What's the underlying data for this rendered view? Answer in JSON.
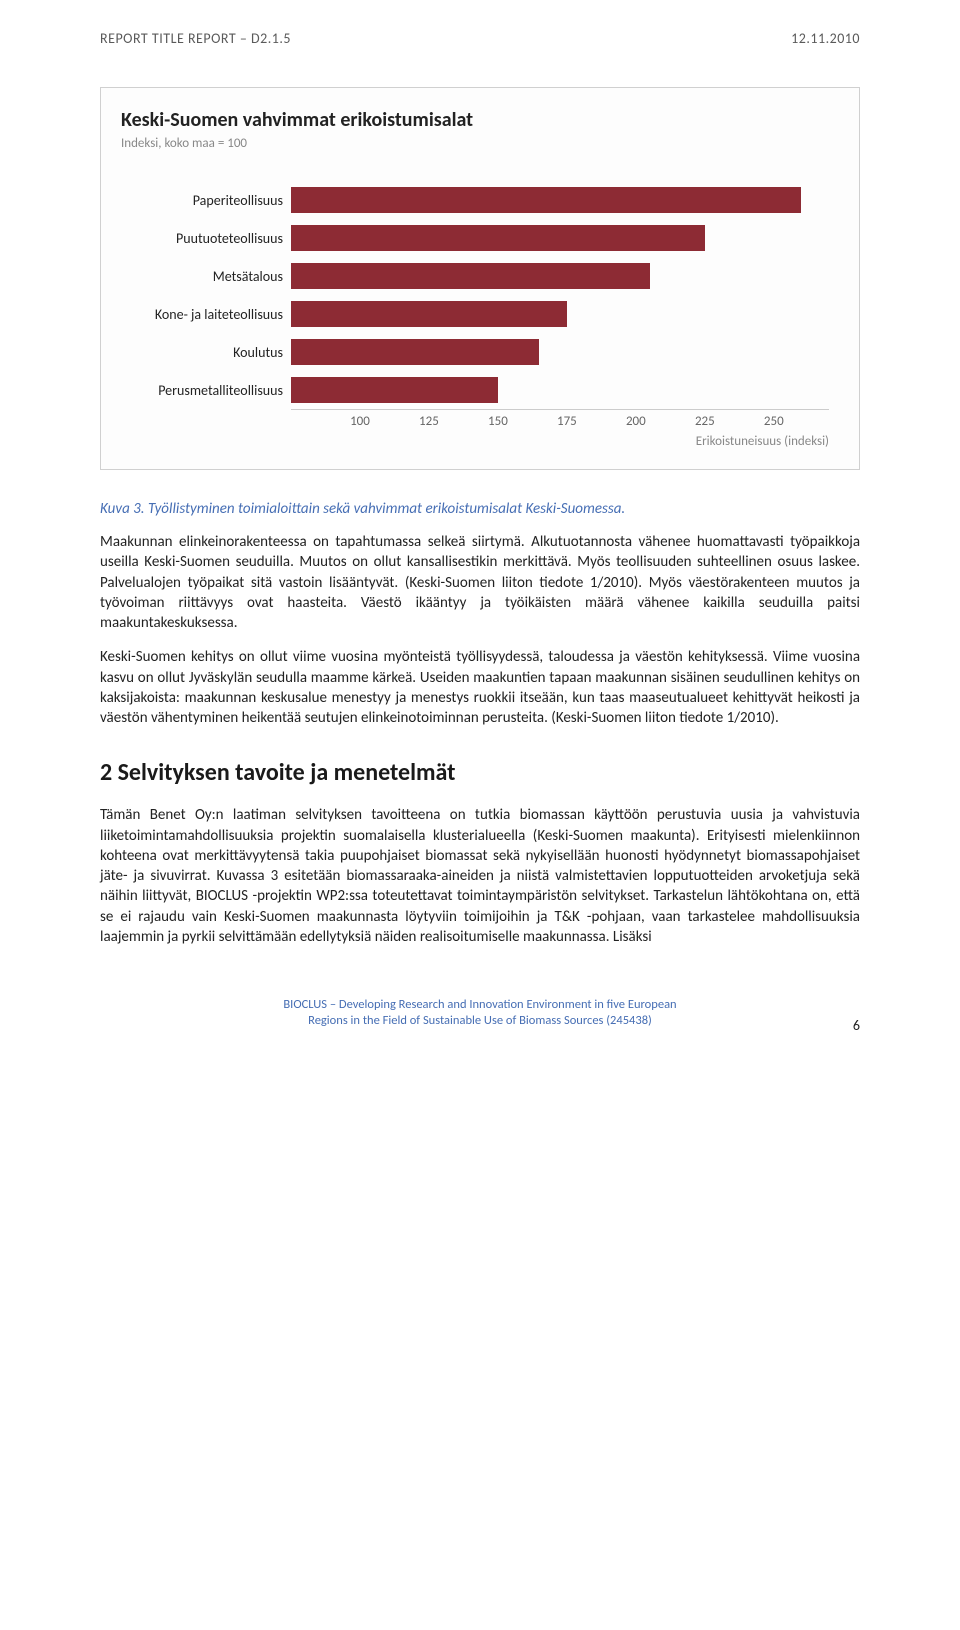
{
  "header": {
    "left": "REPORT TITLE REPORT – D2.1.5",
    "right": "12.11.2010"
  },
  "chart": {
    "type": "bar-horizontal",
    "title": "Keski-Suomen vahvimmat erikoistumisalat",
    "subtitle": "Indeksi, koko maa = 100",
    "categories": [
      "Paperiteollisuus",
      "Puutuoteteollisuus",
      "Metsätalous",
      "Kone- ja laiteteollisuus",
      "Koulutus",
      "Perusmetalliteollisuus"
    ],
    "values": [
      260,
      225,
      205,
      175,
      165,
      150
    ],
    "xlim": [
      75,
      270
    ],
    "ticks": [
      100,
      125,
      150,
      175,
      200,
      225,
      250
    ],
    "bar_color": "#8d2b34",
    "axis_label": "Erikoistuneisuus (indeksi)",
    "bg_color": "#fdfdfd",
    "title_fontsize": 20,
    "sub_fontsize": 13,
    "cat_fontsize": 14
  },
  "figcaption": "Kuva 3. Työllistyminen toimialoittain sekä vahvimmat erikoistumisalat Keski-Suomessa.",
  "para1": "Maakunnan elinkeinorakenteessa on tapahtumassa selkeä siirtymä. Alkutuotannosta vähenee huomattavasti työpaikkoja useilla Keski-Suomen seuduilla. Muutos on ollut kansallisestikin merkittävä. Myös teollisuuden suhteellinen osuus laskee. Palvelualojen työpaikat sitä vastoin lisääntyvät. (Keski-Suomen liiton tiedote 1/2010). Myös väestörakenteen muutos ja työvoiman riittävyys ovat haasteita. Väestö ikääntyy ja työikäisten määrä vähenee kaikilla seuduilla paitsi maakuntakeskuksessa.",
  "para2": "Keski-Suomen kehitys on ollut viime vuosina myönteistä työllisyydessä, taloudessa ja väestön kehityksessä. Viime vuosina kasvu on ollut Jyväskylän seudulla maamme kärkeä. Useiden maakuntien tapaan maakunnan sisäinen seudullinen kehitys on kaksijakoista: maakunnan keskusalue menestyy ja menestys ruokkii itseään, kun taas maaseutualueet kehittyvät heikosti ja väestön vähentyminen heikentää seutujen elinkeinotoiminnan perusteita. (Keski-Suomen liiton tiedote 1/2010).",
  "section_heading": "2  Selvityksen tavoite ja menetelmät",
  "para3": "Tämän Benet Oy:n laatiman selvityksen tavoitteena on tutkia biomassan käyttöön perustuvia uusia ja vahvistuvia liiketoimintamahdollisuuksia projektin suomalaisella klusterialueella (Keski-Suomen maakunta). Erityisesti mielenkiinnon kohteena ovat merkittävyytensä takia puupohjaiset biomassat sekä nykyisellään huonosti hyödynnetyt biomassapohjaiset jäte- ja sivuvirrat. Kuvassa 3 esitetään biomassaraaka-aineiden ja niistä valmistettavien lopputuotteiden arvoketjuja sekä näihin liittyvät, BIOCLUS -projektin WP2:ssa toteutettavat toimintaympäristön selvitykset. Tarkastelun lähtökohtana on, että se ei rajaudu vain Keski-Suomen maakunnasta löytyviin toimijoihin ja T&K -pohjaan, vaan tarkastelee mahdollisuuksia laajemmin ja pyrkii selvittämään edellytyksiä näiden realisoitumiselle maakunnassa. Lisäksi",
  "footer": {
    "line1": "BIOCLUS – Developing Research and Innovation Environment in five European",
    "line2": "Regions in the Field of Sustainable Use of Biomass Sources (245438)",
    "page": "6"
  }
}
